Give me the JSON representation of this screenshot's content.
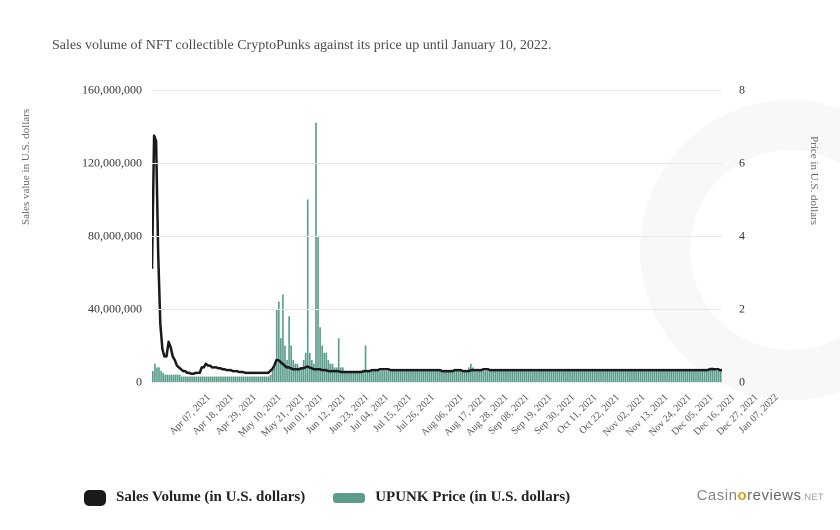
{
  "subtitle": "Sales volume of NFT collectible CryptoPunks against its price up until January 10, 2022.",
  "y_axis_left": {
    "label": "Sales value in U.S. dollars",
    "ticks": [
      0,
      40000000,
      80000000,
      120000000,
      160000000
    ],
    "tick_labels": [
      "0",
      "40,000,000",
      "80,000,000",
      "120,000,000",
      "160,000,000"
    ],
    "min": 0,
    "max": 160000000
  },
  "y_axis_right": {
    "label": "Price in U.S. dollars",
    "ticks": [
      0,
      2,
      4,
      6,
      8
    ],
    "tick_labels": [
      "0",
      "2",
      "4",
      "6",
      "8"
    ],
    "min": 0,
    "max": 8
  },
  "x_axis": {
    "labels": [
      "Apr 07, 2021",
      "Apr 18, 2021",
      "Apr 29, 2021",
      "May 10, 2021",
      "May 21, 2021",
      "Jun 01, 2021",
      "Jun 12, 2021",
      "Jun 23, 2021",
      "Jul 04, 2021",
      "Jul 15, 2021",
      "Jul 26, 2021",
      "Aug 06, 2021",
      "Aug 17, 2021",
      "Aug 28, 2021",
      "Sep 08, 2021",
      "Sep 19, 2021",
      "Sep 30, 2021",
      "Oct 11, 2021",
      "Oct 22, 2021",
      "Nov 02, 2021",
      "Nov 13, 2021",
      "Nov 24, 2021",
      "Dec 05, 2021",
      "Dec 16, 2021",
      "Dec 27, 2021",
      "Jan 07, 2022"
    ]
  },
  "series": {
    "sales_volume": {
      "label": "Sales Volume (in U.S. dollars)",
      "color": "#1a1a1a",
      "line_width": 2.5,
      "values": [
        62000000,
        135000000,
        132000000,
        70000000,
        32000000,
        18000000,
        14000000,
        14000000,
        22000000,
        19000000,
        14000000,
        12000000,
        9000000,
        8000000,
        7000000,
        6000000,
        6000000,
        5000000,
        5000000,
        4500000,
        4500000,
        5000000,
        5000000,
        5000000,
        8000000,
        8000000,
        10000000,
        9000000,
        9000000,
        8000000,
        8000000,
        8000000,
        7500000,
        7500000,
        7000000,
        7000000,
        6500000,
        6500000,
        6500000,
        6000000,
        6000000,
        6000000,
        5500000,
        5500000,
        5500000,
        5000000,
        5000000,
        5000000,
        5000000,
        5000000,
        5000000,
        5000000,
        5000000,
        5000000,
        5000000,
        5000000,
        5000000,
        6000000,
        7000000,
        9000000,
        12000000,
        12000000,
        11000000,
        10000000,
        9000000,
        8000000,
        8000000,
        7500000,
        7000000,
        7000000,
        7000000,
        7000000,
        7500000,
        7500000,
        8000000,
        8500000,
        8000000,
        7500000,
        7000000,
        7000000,
        7000000,
        7000000,
        6500000,
        6500000,
        6500000,
        6000000,
        6000000,
        6000000,
        6000000,
        6000000,
        6000000,
        5500000,
        5500000,
        5500000,
        5500000,
        5500000,
        5500000,
        5500000,
        5500000,
        5500000,
        5500000,
        5500000,
        6000000,
        6000000,
        6000000,
        6000000,
        6500000,
        6500000,
        6500000,
        6500000,
        7000000,
        7000000,
        7000000,
        7000000,
        7000000,
        6500000,
        6500000,
        6500000,
        6500000,
        6500000,
        6500000,
        6500000,
        6500000,
        6500000,
        6500000,
        6500000,
        6500000,
        6500000,
        6500000,
        6500000,
        6500000,
        6500000,
        6500000,
        6500000,
        6500000,
        6500000,
        6500000,
        6500000,
        6500000,
        6500000,
        6000000,
        6000000,
        6000000,
        6000000,
        6000000,
        6000000,
        6500000,
        6500000,
        6500000,
        6500000,
        6000000,
        6000000,
        6000000,
        6000000,
        6500000,
        6500000,
        6500000,
        6500000,
        6500000,
        6500000,
        7000000,
        7000000,
        7000000,
        6500000,
        6500000,
        6500000,
        6500000,
        6500000,
        6500000,
        6500000,
        6500000,
        6500000,
        6500000,
        6500000,
        6500000,
        6500000,
        6500000,
        6500000,
        6500000,
        6500000,
        6500000,
        6500000,
        6500000,
        6500000,
        6500000,
        6500000,
        6500000,
        6500000,
        6500000,
        6500000,
        6500000,
        6500000,
        6500000,
        6500000,
        6500000,
        6500000,
        6500000,
        6500000,
        6500000,
        6500000,
        6500000,
        6500000,
        6500000,
        6500000,
        6500000,
        6500000,
        6500000,
        6500000,
        6500000,
        6500000,
        6500000,
        6500000,
        6500000,
        6500000,
        6500000,
        6500000,
        6500000,
        6500000,
        6500000,
        6500000,
        6500000,
        6500000,
        6500000,
        6500000,
        6500000,
        6500000,
        6500000,
        6500000,
        6500000,
        6500000,
        6500000,
        6500000,
        6500000,
        6500000,
        6500000,
        6500000,
        6500000,
        6500000,
        6500000,
        6500000,
        6500000,
        6500000,
        6500000,
        6500000,
        6500000,
        6500000,
        6500000,
        6500000,
        6500000,
        6500000,
        6500000,
        6500000,
        6500000,
        6500000,
        6500000,
        6500000,
        6500000,
        6500000,
        6500000,
        6500000,
        6500000,
        6500000,
        6500000,
        6500000,
        6500000,
        6500000,
        6500000,
        6500000,
        6500000,
        7000000,
        7000000,
        7000000,
        7000000,
        7000000,
        6500000,
        6500000
      ]
    },
    "upunk_price": {
      "label": "UPUNK Price (in U.S. dollars)",
      "color": "#5a9d8c",
      "values": [
        0.3,
        0.5,
        0.4,
        0.4,
        0.3,
        0.25,
        0.2,
        0.2,
        0.2,
        0.2,
        0.2,
        0.2,
        0.2,
        0.2,
        0.15,
        0.15,
        0.15,
        0.15,
        0.15,
        0.15,
        0.15,
        0.15,
        0.15,
        0.15,
        0.15,
        0.15,
        0.15,
        0.15,
        0.15,
        0.15,
        0.15,
        0.15,
        0.15,
        0.15,
        0.15,
        0.15,
        0.15,
        0.15,
        0.15,
        0.15,
        0.15,
        0.15,
        0.15,
        0.15,
        0.15,
        0.15,
        0.15,
        0.15,
        0.15,
        0.15,
        0.15,
        0.15,
        0.15,
        0.15,
        0.15,
        0.15,
        0.15,
        0.2,
        0.35,
        0.5,
        2.0,
        2.2,
        1.2,
        2.4,
        1.0,
        0.6,
        1.8,
        1.0,
        0.6,
        0.5,
        0.5,
        0.4,
        0.4,
        0.6,
        0.8,
        5.0,
        0.8,
        0.6,
        0.5,
        7.1,
        4.0,
        1.5,
        1.0,
        0.8,
        0.8,
        0.6,
        0.5,
        0.5,
        0.4,
        0.4,
        1.2,
        0.4,
        0.4,
        0.3,
        0.3,
        0.3,
        0.3,
        0.3,
        0.3,
        0.3,
        0.3,
        0.3,
        0.3,
        1.0,
        0.3,
        0.3,
        0.3,
        0.3,
        0.3,
        0.3,
        0.3,
        0.3,
        0.3,
        0.3,
        0.3,
        0.3,
        0.3,
        0.3,
        0.3,
        0.3,
        0.3,
        0.3,
        0.3,
        0.3,
        0.3,
        0.3,
        0.3,
        0.3,
        0.3,
        0.3,
        0.3,
        0.3,
        0.3,
        0.3,
        0.3,
        0.3,
        0.3,
        0.3,
        0.3,
        0.3,
        0.3,
        0.3,
        0.3,
        0.3,
        0.3,
        0.3,
        0.3,
        0.3,
        0.3,
        0.3,
        0.3,
        0.3,
        0.3,
        0.4,
        0.5,
        0.4,
        0.3,
        0.3,
        0.3,
        0.3,
        0.3,
        0.3,
        0.3,
        0.3,
        0.3,
        0.3,
        0.3,
        0.3,
        0.3,
        0.3,
        0.3,
        0.3,
        0.3,
        0.3,
        0.3,
        0.3,
        0.3,
        0.3,
        0.3,
        0.3,
        0.3,
        0.3,
        0.3,
        0.3,
        0.3,
        0.3,
        0.3,
        0.3,
        0.3,
        0.3,
        0.3,
        0.3,
        0.3,
        0.3,
        0.3,
        0.3,
        0.3,
        0.3,
        0.3,
        0.3,
        0.3,
        0.3,
        0.3,
        0.3,
        0.3,
        0.3,
        0.3,
        0.3,
        0.3,
        0.3,
        0.3,
        0.3,
        0.3,
        0.3,
        0.3,
        0.3,
        0.3,
        0.3,
        0.3,
        0.3,
        0.3,
        0.3,
        0.3,
        0.3,
        0.3,
        0.3,
        0.3,
        0.3,
        0.3,
        0.3,
        0.3,
        0.3,
        0.3,
        0.3,
        0.3,
        0.3,
        0.3,
        0.3,
        0.3,
        0.3,
        0.3,
        0.3,
        0.3,
        0.3,
        0.3,
        0.3,
        0.3,
        0.3,
        0.3,
        0.3,
        0.3,
        0.3,
        0.3,
        0.3,
        0.3,
        0.3,
        0.3,
        0.3,
        0.3,
        0.3,
        0.3,
        0.3,
        0.3,
        0.3,
        0.3,
        0.3,
        0.3,
        0.3,
        0.3,
        0.35,
        0.4,
        0.4,
        0.35,
        0.3,
        0.3,
        0.3
      ]
    }
  },
  "legend": [
    {
      "key": "sales_volume",
      "label": "Sales Volume (in U.S. dollars)",
      "type": "line"
    },
    {
      "key": "upunk_price",
      "label": "UPUNK Price (in U.S. dollars)",
      "type": "bar"
    }
  ],
  "grid_color": "#e8e8e8",
  "background_color": "#ffffff",
  "watermark": {
    "part1": "Casin",
    "o": "o",
    "part2": "reviews",
    "suffix": ".NET"
  }
}
